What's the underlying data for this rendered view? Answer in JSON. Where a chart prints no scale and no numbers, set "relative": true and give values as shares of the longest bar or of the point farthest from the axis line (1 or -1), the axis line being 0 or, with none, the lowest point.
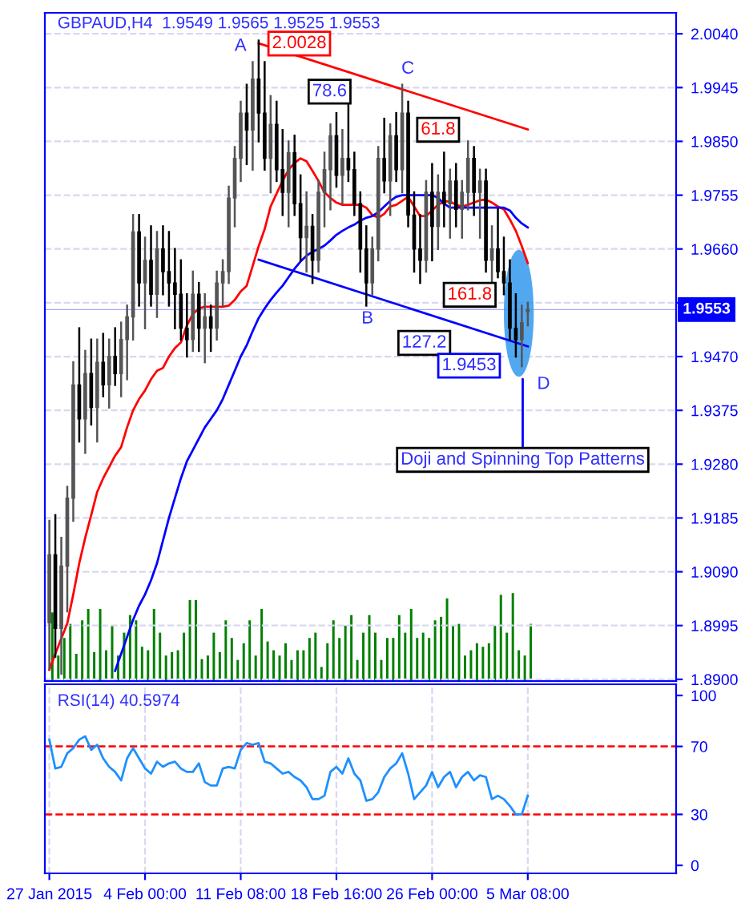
{
  "chart_data": [
    {
      "type": "candlestick",
      "title": "GBPAUD,H4  1.9549 1.9565 1.9525 1.9553",
      "categories": [
        null,
        null,
        null,
        null,
        null,
        null,
        null,
        null,
        null,
        null,
        null,
        null,
        null,
        null,
        null,
        null,
        null,
        null,
        null,
        null,
        null,
        null,
        null,
        null,
        null,
        null,
        null,
        null,
        null,
        null,
        null,
        null,
        null,
        null,
        null,
        null,
        null,
        null,
        null,
        null,
        null,
        null,
        null,
        null,
        null,
        null,
        null,
        null,
        null,
        null,
        null,
        null,
        null,
        null,
        null,
        null,
        null,
        null,
        null,
        null,
        null,
        null,
        null,
        null,
        null,
        null,
        null,
        null,
        null,
        null,
        null,
        null,
        null,
        null,
        null,
        null,
        null,
        null,
        null,
        null,
        null
      ],
      "ohlc": [
        [
          1.9,
          1.918,
          1.892,
          1.912
        ],
        [
          1.912,
          1.919,
          1.894,
          1.899
        ],
        [
          1.899,
          1.915,
          1.891,
          1.91
        ],
        [
          1.91,
          1.924,
          1.902,
          1.922
        ],
        [
          1.922,
          1.946,
          1.918,
          1.942
        ],
        [
          1.942,
          1.952,
          1.932,
          1.936
        ],
        [
          1.936,
          1.948,
          1.93,
          1.944
        ],
        [
          1.944,
          1.95,
          1.935,
          1.938
        ],
        [
          1.938,
          1.95,
          1.932,
          1.946
        ],
        [
          1.946,
          1.951,
          1.94,
          1.942
        ],
        [
          1.942,
          1.95,
          1.938,
          1.947
        ],
        [
          1.947,
          1.952,
          1.942,
          1.944
        ],
        [
          1.944,
          1.953,
          1.94,
          1.95
        ],
        [
          1.95,
          1.956,
          1.943,
          1.954
        ],
        [
          1.954,
          1.972,
          1.95,
          1.969
        ],
        [
          1.969,
          1.972,
          1.956,
          1.96
        ],
        [
          1.96,
          1.968,
          1.952,
          1.964
        ],
        [
          1.964,
          1.97,
          1.956,
          1.958
        ],
        [
          1.958,
          1.969,
          1.954,
          1.966
        ],
        [
          1.966,
          1.97,
          1.958,
          1.962
        ],
        [
          1.962,
          1.969,
          1.956,
          1.96
        ],
        [
          1.96,
          1.966,
          1.952,
          1.958
        ],
        [
          1.958,
          1.964,
          1.95,
          1.952
        ],
        [
          1.952,
          1.958,
          1.947,
          1.95
        ],
        [
          1.95,
          1.962,
          1.948,
          1.958
        ],
        [
          1.958,
          1.96,
          1.948,
          1.952
        ],
        [
          1.952,
          1.958,
          1.946,
          1.954
        ],
        [
          1.954,
          1.956,
          1.948,
          1.952
        ],
        [
          1.952,
          1.962,
          1.95,
          1.96
        ],
        [
          1.96,
          1.964,
          1.956,
          1.962
        ],
        [
          1.962,
          1.977,
          1.96,
          1.975
        ],
        [
          1.975,
          1.984,
          1.97,
          1.982
        ],
        [
          1.982,
          1.992,
          1.978,
          1.99
        ],
        [
          1.99,
          1.995,
          1.981,
          1.987
        ],
        [
          1.987,
          1.999,
          1.98,
          1.996
        ],
        [
          1.996,
          2.0028,
          1.985,
          1.99
        ],
        [
          1.99,
          1.999,
          1.98,
          1.982
        ],
        [
          1.982,
          1.993,
          1.976,
          1.988
        ],
        [
          1.988,
          1.992,
          1.978,
          1.98
        ],
        [
          1.98,
          1.987,
          1.972,
          1.976
        ],
        [
          1.976,
          1.985,
          1.97,
          1.983
        ],
        [
          1.983,
          1.986,
          1.972,
          1.974
        ],
        [
          1.974,
          1.979,
          1.964,
          1.968
        ],
        [
          1.968,
          1.976,
          1.962,
          1.97
        ],
        [
          1.97,
          1.972,
          1.96,
          1.964
        ],
        [
          1.964,
          1.978,
          1.962,
          1.976
        ],
        [
          1.976,
          1.983,
          1.97,
          1.98
        ],
        [
          1.98,
          1.988,
          1.973,
          1.986
        ],
        [
          1.986,
          1.99,
          1.977,
          1.979
        ],
        [
          1.979,
          1.987,
          1.974,
          1.982
        ],
        [
          1.982,
          1.992,
          1.978,
          1.98
        ],
        [
          1.98,
          1.983,
          1.972,
          1.974
        ],
        [
          1.974,
          1.976,
          1.962,
          1.966
        ],
        [
          1.966,
          1.97,
          1.956,
          1.96
        ],
        [
          1.96,
          1.968,
          1.958,
          1.966
        ],
        [
          1.966,
          1.984,
          1.964,
          1.982
        ],
        [
          1.982,
          1.989,
          1.976,
          1.978
        ],
        [
          1.978,
          1.988,
          1.972,
          1.986
        ],
        [
          1.986,
          1.99,
          1.978,
          1.98
        ],
        [
          1.98,
          1.995,
          1.976,
          1.99
        ],
        [
          1.99,
          1.992,
          1.97,
          1.972
        ],
        [
          1.972,
          1.976,
          1.962,
          1.966
        ],
        [
          1.966,
          1.972,
          1.96,
          1.964
        ],
        [
          1.964,
          1.978,
          1.962,
          1.976
        ],
        [
          1.976,
          1.981,
          1.964,
          1.97
        ],
        [
          1.97,
          1.979,
          1.966,
          1.976
        ],
        [
          1.976,
          1.983,
          1.97,
          1.974
        ],
        [
          1.974,
          1.98,
          1.968,
          1.978
        ],
        [
          1.978,
          1.981,
          1.97,
          1.973
        ],
        [
          1.973,
          1.978,
          1.968,
          1.976
        ],
        [
          1.976,
          1.985,
          1.973,
          1.982
        ],
        [
          1.982,
          1.984,
          1.972,
          1.976
        ],
        [
          1.976,
          1.98,
          1.968,
          1.978
        ],
        [
          1.978,
          1.98,
          1.962,
          1.964
        ],
        [
          1.964,
          1.97,
          1.96,
          1.966
        ],
        [
          1.966,
          1.973,
          1.961,
          1.962
        ],
        [
          1.962,
          1.968,
          1.958,
          1.96
        ],
        [
          1.96,
          1.964,
          1.95,
          1.952
        ],
        [
          1.952,
          1.958,
          1.947,
          1.95
        ],
        [
          1.95,
          1.956,
          1.9453,
          1.953
        ],
        [
          1.9549,
          1.9565,
          1.9525,
          1.9553
        ]
      ],
      "series": [
        {
          "type": "line",
          "color": "#ff0000",
          "values": [
            1.8917,
            1.8945,
            1.8972,
            1.8999,
            1.905,
            1.9105,
            1.915,
            1.919,
            1.9231,
            1.9255,
            1.9275,
            1.9295,
            1.931,
            1.9345,
            1.9375,
            1.9395,
            1.941,
            1.943,
            1.9445,
            1.945,
            1.947,
            1.9485,
            1.9495,
            1.9525,
            1.9545,
            1.9555,
            1.9558,
            1.9558,
            1.9558,
            1.9558,
            1.956,
            1.957,
            1.9585,
            1.9595,
            1.963,
            1.9665,
            1.9695,
            1.9735,
            1.9758,
            1.978,
            1.98,
            1.9812,
            1.982,
            1.9815,
            1.9798,
            1.978,
            1.976,
            1.975,
            1.9742,
            1.9738,
            1.9738,
            1.9738,
            1.9738,
            1.9733,
            1.972,
            1.9715,
            1.9722,
            1.9735,
            1.9738,
            1.9745,
            1.9752,
            1.9735,
            1.9718,
            1.9718,
            1.9728,
            1.9738,
            1.9744,
            1.9744,
            1.9738,
            1.9735,
            1.9738,
            1.9742,
            1.9746,
            1.9747,
            1.9742,
            1.9735,
            1.973,
            1.9712,
            1.9692,
            1.9665,
            1.9635
          ]
        },
        {
          "type": "line",
          "color": "#0000ff",
          "values": [
            null,
            null,
            null,
            null,
            null,
            null,
            null,
            null,
            null,
            null,
            null,
            1.8915,
            1.8945,
            1.8975,
            1.9005,
            1.903,
            1.905,
            1.9075,
            1.9105,
            1.9145,
            1.9185,
            1.922,
            1.9255,
            1.9285,
            1.9305,
            1.9325,
            1.9345,
            1.936,
            1.9375,
            1.9395,
            1.942,
            1.9445,
            1.947,
            1.949,
            1.9515,
            1.9538,
            1.9555,
            1.957,
            1.9583,
            1.9595,
            1.961,
            1.9625,
            1.9638,
            1.9648,
            1.9655,
            1.966,
            1.9666,
            1.9675,
            1.9685,
            1.9692,
            1.9698,
            1.9703,
            1.971,
            1.9715,
            1.9718,
            1.9725,
            1.9735,
            1.9745,
            1.9752,
            1.9755,
            1.9755,
            1.9755,
            1.9755,
            1.9755,
            1.9755,
            1.975,
            1.974,
            1.9733,
            1.9733,
            1.9733,
            1.9733,
            1.9733,
            1.9733,
            1.9733,
            1.9733,
            1.9733,
            1.9733,
            1.9728,
            1.9715,
            1.9705,
            1.9698
          ]
        },
        {
          "type": "line",
          "color": "#ff0000",
          "values": [
            null,
            null,
            null,
            null,
            null,
            null,
            null,
            null,
            null,
            null,
            null,
            null,
            null,
            null,
            null,
            null,
            null,
            null,
            null,
            null,
            null,
            null,
            null,
            null,
            null,
            null,
            null,
            null,
            null,
            null,
            null,
            null,
            null,
            null,
            null,
            2.0023,
            null,
            null,
            null,
            null,
            null,
            null,
            null,
            null,
            null,
            null,
            null,
            null,
            null,
            null,
            null,
            null,
            null,
            null,
            null,
            null,
            null,
            null,
            null,
            null,
            null,
            null,
            null,
            null,
            null,
            null,
            null,
            null,
            null,
            null,
            null,
            null,
            null,
            null,
            null,
            null,
            null,
            null,
            null,
            null,
            1.9871
          ]
        },
        {
          "type": "line",
          "color": "#0000ff",
          "values": [
            null,
            null,
            null,
            null,
            null,
            null,
            null,
            null,
            null,
            null,
            null,
            null,
            null,
            null,
            null,
            null,
            null,
            null,
            null,
            null,
            null,
            null,
            null,
            null,
            null,
            null,
            null,
            null,
            null,
            null,
            null,
            null,
            null,
            null,
            null,
            1.9641,
            null,
            null,
            null,
            null,
            null,
            null,
            null,
            null,
            null,
            null,
            null,
            null,
            null,
            null,
            null,
            null,
            null,
            null,
            null,
            null,
            null,
            null,
            null,
            null,
            null,
            null,
            null,
            null,
            null,
            null,
            null,
            null,
            null,
            null,
            null,
            null,
            null,
            null,
            null,
            null,
            null,
            null,
            null,
            null,
            1.9488
          ]
        }
      ],
      "ylim": [
        1.8897,
        2.0077
      ],
      "yticks": [
        {
          "value": 1.89,
          "label": "1.8900"
        },
        {
          "value": 1.8995,
          "label": "1.8995"
        },
        {
          "value": 1.909,
          "label": "1.9090"
        },
        {
          "value": 1.9185,
          "label": "1.9185"
        },
        {
          "value": 1.928,
          "label": "1.9280"
        },
        {
          "value": 1.9375,
          "label": "1.9375"
        },
        {
          "value": 1.947,
          "label": "1.9470"
        },
        {
          "value": 1.9565,
          "label": null
        },
        {
          "value": 1.966,
          "label": "1.9660"
        },
        {
          "value": 1.9755,
          "label": "1.9755"
        },
        {
          "value": 1.985,
          "label": "1.9850"
        },
        {
          "value": 1.9945,
          "label": "1.9945"
        },
        {
          "value": 2.004,
          "label": "2.0040"
        }
      ],
      "tick_labels": "y",
      "grid": true,
      "ref_lines": [
        {
          "axis": "y",
          "value": 1.9553,
          "label": "1.9553",
          "color": "#0000ff"
        }
      ],
      "annotations": [
        "A",
        "2.0028",
        "78.6",
        "C",
        "61.8",
        "B",
        "161.8",
        "127.2",
        "1.9453",
        "D",
        "Doji and Spinning Top Patterns"
      ]
    },
    {
      "type": "bar",
      "relative": true,
      "color": "#008000",
      "tick_labels": false,
      "categories": [
        null,
        null,
        null,
        null,
        null,
        null,
        null,
        null,
        null,
        null,
        null,
        null,
        null,
        null,
        null,
        null,
        null,
        null,
        null,
        null,
        null,
        null,
        null,
        null,
        null,
        null,
        null,
        null,
        null,
        null,
        null,
        null,
        null,
        null,
        null,
        null,
        null,
        null,
        null,
        null,
        null,
        null,
        null,
        null,
        null,
        null,
        null,
        null,
        null,
        null,
        null,
        null,
        null,
        null,
        null,
        null,
        null,
        null,
        null,
        null,
        null,
        null,
        null,
        null,
        null,
        null,
        null,
        null,
        null,
        null,
        null,
        null,
        null,
        null,
        null,
        null,
        null,
        null,
        null,
        null,
        null
      ],
      "values": [
        0.78,
        0.29,
        0.49,
        0.65,
        0.31,
        0.69,
        0.82,
        0.33,
        0.82,
        0.35,
        0.63,
        0.29,
        0.55,
        0.75,
        0.69,
        0.39,
        0.35,
        0.82,
        0.55,
        0.29,
        0.33,
        0.35,
        0.55,
        0.92,
        0.92,
        0.25,
        0.29,
        0.55,
        0.33,
        0.69,
        0.49,
        0.24,
        0.43,
        0.69,
        0.29,
        0.82,
        0.45,
        0.35,
        0.29,
        0.43,
        0.24,
        0.35,
        0.35,
        0.49,
        0.55,
        0.16,
        0.43,
        0.69,
        0.49,
        0.63,
        0.75,
        0.24,
        0.55,
        0.75,
        0.55,
        0.24,
        0.49,
        0.49,
        0.75,
        0.55,
        0.82,
        0.49,
        0.55,
        0.49,
        0.69,
        0.73,
        0.94,
        0.63,
        0.65,
        0.29,
        0.35,
        0.43,
        0.39,
        0.43,
        0.63,
        0.98,
        0.55,
        1,
        0.35,
        0.29,
        0.65
      ]
    },
    {
      "type": "line",
      "color": "#1e90ff",
      "categories": [
        "27 Jan 2015",
        null,
        null,
        null,
        null,
        null,
        null,
        null,
        null,
        null,
        null,
        null,
        null,
        null,
        null,
        null,
        "4 Feb 00:00",
        null,
        null,
        null,
        null,
        null,
        null,
        null,
        null,
        null,
        null,
        null,
        null,
        null,
        null,
        null,
        "11 Feb 08:00",
        null,
        null,
        null,
        null,
        null,
        null,
        null,
        null,
        null,
        null,
        null,
        null,
        null,
        null,
        null,
        "18 Feb 16:00",
        null,
        null,
        null,
        null,
        null,
        null,
        null,
        null,
        null,
        null,
        null,
        null,
        null,
        null,
        null,
        "26 Feb 00:00",
        null,
        null,
        null,
        null,
        null,
        null,
        null,
        null,
        null,
        null,
        null,
        null,
        null,
        null,
        null,
        "5 Mar 08:00"
      ],
      "values": [
        74,
        57,
        58,
        66,
        69,
        74,
        76,
        68,
        71,
        63,
        58,
        55,
        50,
        63,
        69,
        63,
        57,
        54,
        61,
        58,
        60,
        61,
        57,
        55,
        55,
        60,
        49,
        47,
        47,
        57,
        58,
        57,
        68,
        72,
        71,
        72,
        61,
        60,
        57,
        54,
        55,
        52,
        50,
        46,
        39,
        39,
        41,
        55,
        58,
        54,
        63,
        54,
        50,
        38,
        39,
        43,
        52,
        57,
        60,
        66,
        54,
        39,
        43,
        47,
        55,
        46,
        52,
        55,
        46,
        52,
        55,
        50,
        53,
        52,
        39,
        41,
        39,
        35,
        30,
        30,
        41
      ],
      "ylim": [
        -4.7,
        106.6
      ],
      "yticks": [
        0,
        30,
        70,
        100
      ],
      "grid": "x",
      "ref_lines": [
        {
          "axis": "y",
          "value": 70,
          "color": "#ff0000",
          "line_style": "dashed"
        },
        {
          "axis": "y",
          "value": 30,
          "color": "#ff0000",
          "line_style": "dashed"
        }
      ],
      "annotations": [
        "RSI(14) 40.5974"
      ]
    }
  ]
}
